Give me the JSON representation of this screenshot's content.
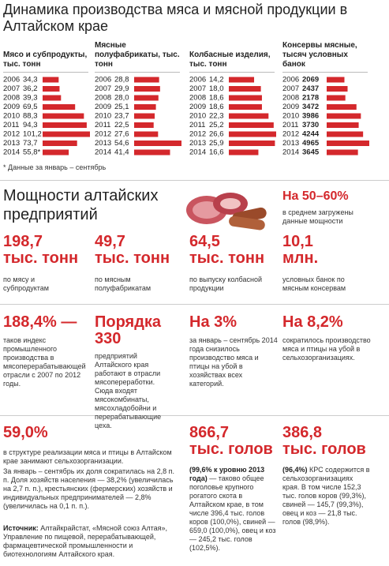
{
  "header": {
    "title": "Динамика производства мяса и мясной продукции в Алтайском крае"
  },
  "chart_data": [
    {
      "type": "bar",
      "title": "Мясо и субпродукты, тыс. тонн",
      "color": "#d4282c",
      "categories": [
        "2006",
        "2007",
        "2008",
        "2009",
        "2010",
        "2011",
        "2012",
        "2013",
        "2014"
      ],
      "values": [
        34.3,
        36.2,
        39.3,
        69.5,
        88.3,
        94.3,
        101.2,
        73.7,
        55.8
      ],
      "value_labels": [
        "34,3",
        "36,2",
        "39,3",
        "69,5",
        "88,3",
        "94,3",
        "101,2",
        "73,7",
        "55,8*"
      ]
    },
    {
      "type": "bar",
      "title": "Мясные полуфабрикаты, тыс. тонн",
      "color": "#d4282c",
      "categories": [
        "2006",
        "2007",
        "2008",
        "2009",
        "2010",
        "2011",
        "2012",
        "2013",
        "2014"
      ],
      "values": [
        28.8,
        29.9,
        28.0,
        25.1,
        23.7,
        22.5,
        27.6,
        54.6,
        41.4
      ],
      "value_labels": [
        "28,8",
        "29,9",
        "28,0",
        "25,1",
        "23,7",
        "22,5",
        "27,6",
        "54,6",
        "41,4"
      ]
    },
    {
      "type": "bar",
      "title": "Колбасные изделия, тыс. тонн",
      "color": "#d4282c",
      "categories": [
        "2006",
        "2007",
        "2008",
        "2009",
        "2010",
        "2011",
        "2012",
        "2013",
        "2014"
      ],
      "values": [
        14.2,
        18.0,
        18.6,
        18.6,
        22.3,
        25.2,
        26.6,
        25.9,
        16.6
      ],
      "value_labels": [
        "14,2",
        "18,0",
        "18,6",
        "18,6",
        "22,3",
        "25,2",
        "26,6",
        "25,9",
        "16,6"
      ]
    },
    {
      "type": "bar",
      "title": "Консервы мясные, тысяч условных банок",
      "color": "#d4282c",
      "categories": [
        "2006",
        "2007",
        "2008",
        "2009",
        "2010",
        "2011",
        "2012",
        "2013",
        "2014"
      ],
      "values": [
        2069,
        2437,
        2178,
        3472,
        3986,
        3730,
        4244,
        4965,
        3645
      ]
    }
  ],
  "footnote": "* Данные за январь – сентябрь",
  "capacity": {
    "title": "Мощности алтайских предприятий",
    "load": {
      "value": "На 50–60%",
      "text": "в среднем загружены данные мощности"
    },
    "items": [
      {
        "value": "198,7",
        "unit": "тыс. тонн",
        "text": "по мясу и субпродуктам"
      },
      {
        "value": "49,7",
        "unit": "тыс. тонн",
        "text": "по мясным полуфабрикатам"
      },
      {
        "value": "64,5",
        "unit": "тыс. тонн",
        "text": "по выпуску колбасной продукции"
      },
      {
        "value": "10,1",
        "unit": "млн.",
        "text": "условных банок по мясным консервам"
      }
    ]
  },
  "facts": [
    {
      "value": "188,4% —",
      "text": "таков индекс промышленного производства в мясоперерабатывающей отрасли с 2007 по 2012 годы."
    },
    {
      "value": "Порядка 330",
      "text": "предприятий Алтайского края работают в отрасли мясопереработки. Сюда входят мясокомбинаты, мясохладобойни и перерабатывающие цеха."
    },
    {
      "value": "На 3%",
      "text": "за январь – сентябрь 2014 года снизилось производство мяса и птицы на убой в хозяйствах всех категорий."
    },
    {
      "value": "На 8,2%",
      "text": "сократилось производство мяса и птицы на убой в сельхозорганизациях."
    }
  ],
  "structure": {
    "value": "59,0%",
    "text": "в структуре реализации мяса и птицы в Алтайском крае занимают сельхозорганизации.",
    "detail": "За январь – сентябрь их доля сократилась на 2,8 п. п. Доля хозяйств населения — 38,2% (увеличилась на 2,7 п. п.), крестьянских (фермерских) хозяйств и индивидуальных предпринимателей — 2,8% (увеличилась на 0,1 п. п.)."
  },
  "livestock": [
    {
      "value": "866,7",
      "unit": "тыс. голов",
      "lead": "(99,6% к уровню 2013 года)",
      "text": " — таково общее поголовье крупного рогатого скота в Алтайском крае, в том числе 396,4 тыс. голов коров (100,0%), свиней — 659,0 (100,0%), овец и коз — 245,2 тыс. голов (102,5%)."
    },
    {
      "value": "386,8",
      "unit": "тыс. голов",
      "lead": "(96,4%)",
      "text": " КРС содержится в сельхозорганизациях края. В том числе 152,3 тыс. голов коров (99,3%), свиней — 145,7 (99,3%), овец и коз — 21,8 тыс. голов (98,9%)."
    }
  ],
  "source": {
    "label": "Источник:",
    "text": " Алтайкрайстат, «Мясной союз Алтая», Управление по пищевой, перерабатывающей, фармацевтической промышленности и биотехнологиям Алтайского края."
  }
}
